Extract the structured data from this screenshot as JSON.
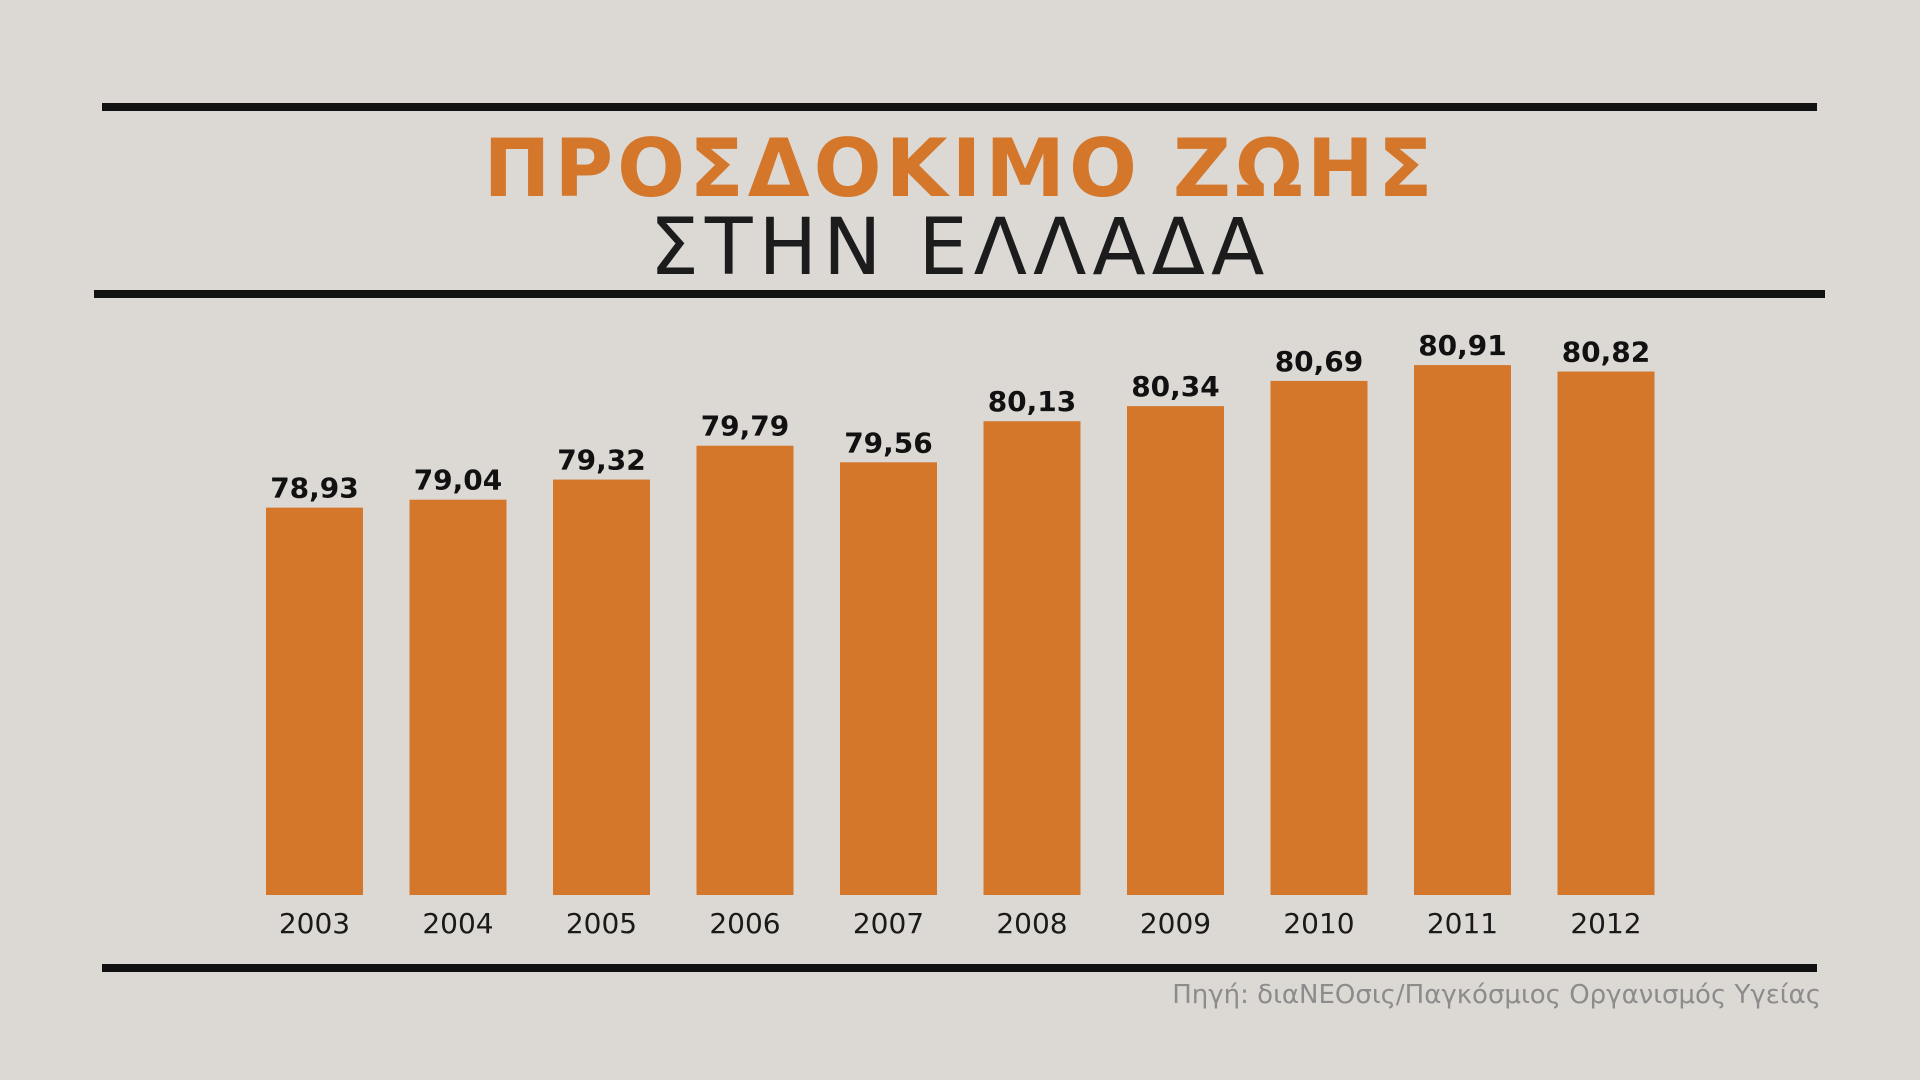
{
  "title": "ΠΡΟΣΔΟΚΙΜΟ ΖΩΗΣ",
  "subtitle": "ΣΤΗΝ ΕΛΛΑΔΑ",
  "source": "Πηγή: διαΝΕΟσις/Παγκόσμιος Οργανισμός Υγείας",
  "colors": {
    "accent": "#d4772b",
    "background": "#dcd8d4",
    "text": "#111111",
    "muted": "#8c8c8c"
  },
  "chart_data": {
    "type": "bar",
    "categories": [
      "2003",
      "2004",
      "2005",
      "2006",
      "2007",
      "2008",
      "2009",
      "2010",
      "2011",
      "2012"
    ],
    "values": [
      78.93,
      79.04,
      79.32,
      79.79,
      79.56,
      80.13,
      80.34,
      80.69,
      80.91,
      80.82
    ],
    "labels": [
      "78,93",
      "79,04",
      "79,32",
      "79,79",
      "79,56",
      "80,13",
      "80,34",
      "80,69",
      "80,91",
      "80,82"
    ],
    "xlabel": "",
    "ylabel": "",
    "ylim": [
      73.55,
      81.25
    ],
    "grid": false,
    "legend": "none"
  }
}
